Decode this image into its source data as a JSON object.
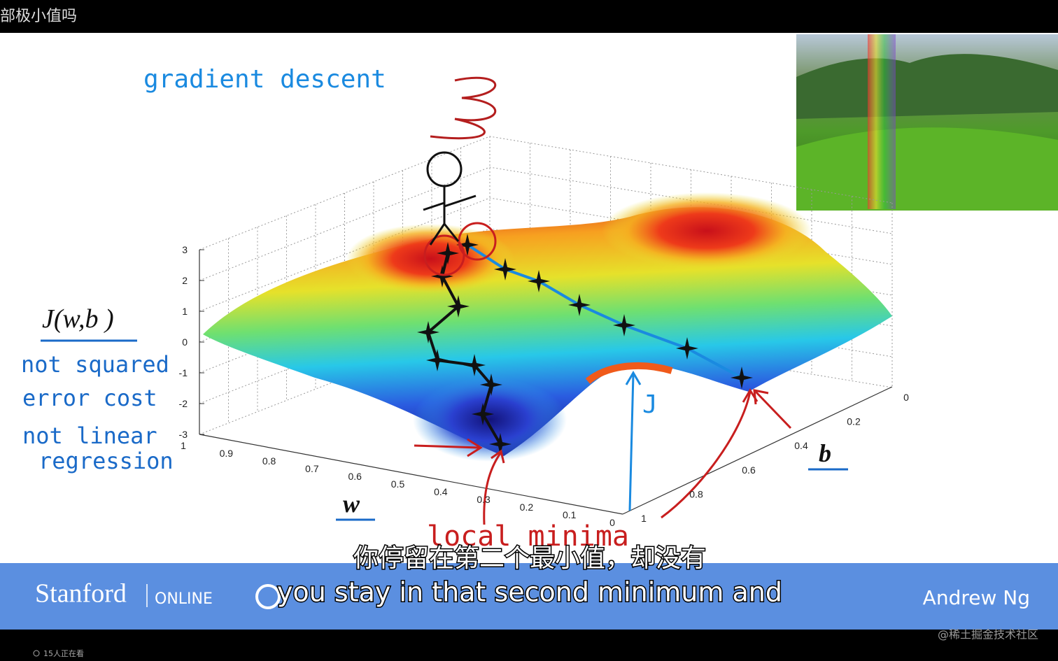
{
  "top_bar": {
    "title": "部极小值吗"
  },
  "slide": {
    "annotations": {
      "gradient_descent": "gradient descent",
      "cost_label": "J(w,b )",
      "note1a": "not squared",
      "note1b": "error cost",
      "note2a": "not linear",
      "note2b": "regression",
      "w_label": "w",
      "b_label": "b",
      "j_label": "J",
      "local_minima": "local minima"
    },
    "z_ticks": [
      "3",
      "2",
      "1",
      "0",
      "-1",
      "-2",
      "-3"
    ],
    "w_ticks": [
      "1",
      "0.9",
      "0.8",
      "0.7",
      "0.6",
      "0.5",
      "0.4",
      "0.3",
      "0.2",
      "0.1",
      "0"
    ],
    "b_ticks": [
      "0",
      "0.2",
      "0.4",
      "0.6",
      "0.8",
      "1"
    ]
  },
  "subtitles": {
    "zh": "你停留在第二个最小值，却没有",
    "en": "you stay in that second minimum and"
  },
  "footer": {
    "brand": "Stanford",
    "brand_suffix": "ONLINE",
    "instructor": "Andrew Ng"
  },
  "status": {
    "viewers": "15人正在看",
    "watermark": "@稀土掘金技术社区"
  }
}
